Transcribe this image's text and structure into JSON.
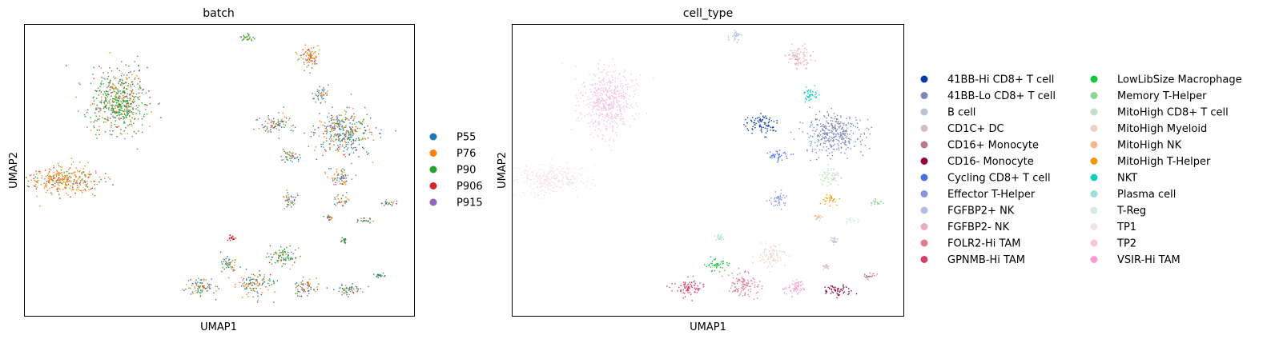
{
  "chart_data": [
    {
      "type": "scatter",
      "title": "batch",
      "xlabel": "UMAP1",
      "ylabel": "UMAP2",
      "grid": false,
      "ticks": false,
      "legend_placement": "right",
      "series": [
        {
          "name": "P55",
          "color": "#1f77b4"
        },
        {
          "name": "P76",
          "color": "#ff7f0e"
        },
        {
          "name": "P90",
          "color": "#2ca02c"
        },
        {
          "name": "P906",
          "color": "#d62728"
        },
        {
          "name": "P915",
          "color": "#9467bd"
        }
      ],
      "clusters": [
        {
          "cx": 0.1,
          "cy": 0.47,
          "w": 0.09,
          "h": 0.05,
          "mix": [
            0,
            0.7,
            0.15,
            0.1,
            0.05
          ]
        },
        {
          "cx": 0.24,
          "cy": 0.74,
          "w": 0.07,
          "h": 0.11,
          "mix": [
            0,
            0.15,
            0.65,
            0.12,
            0.08
          ]
        },
        {
          "cx": 0.57,
          "cy": 0.96,
          "w": 0.02,
          "h": 0.02,
          "mix": [
            0.1,
            0.1,
            0.7,
            0.05,
            0.05
          ]
        },
        {
          "cx": 0.73,
          "cy": 0.89,
          "w": 0.03,
          "h": 0.04,
          "mix": [
            0.15,
            0.7,
            0.05,
            0.05,
            0.05
          ]
        },
        {
          "cx": 0.76,
          "cy": 0.76,
          "w": 0.02,
          "h": 0.03,
          "mix": [
            0.4,
            0.3,
            0.1,
            0.05,
            0.15
          ]
        },
        {
          "cx": 0.64,
          "cy": 0.66,
          "w": 0.04,
          "h": 0.03,
          "mix": [
            0.3,
            0.3,
            0.2,
            0.05,
            0.15
          ]
        },
        {
          "cx": 0.82,
          "cy": 0.63,
          "w": 0.07,
          "h": 0.07,
          "mix": [
            0.3,
            0.25,
            0.25,
            0.1,
            0.1
          ]
        },
        {
          "cx": 0.68,
          "cy": 0.55,
          "w": 0.03,
          "h": 0.02,
          "mix": [
            0.3,
            0.3,
            0.2,
            0.1,
            0.1
          ]
        },
        {
          "cx": 0.81,
          "cy": 0.48,
          "w": 0.03,
          "h": 0.03,
          "mix": [
            0.3,
            0.4,
            0.1,
            0.1,
            0.1
          ]
        },
        {
          "cx": 0.68,
          "cy": 0.4,
          "w": 0.02,
          "h": 0.03,
          "mix": [
            0.25,
            0.35,
            0.25,
            0.05,
            0.1
          ]
        },
        {
          "cx": 0.81,
          "cy": 0.4,
          "w": 0.02,
          "h": 0.02,
          "mix": [
            0.3,
            0.3,
            0.2,
            0.1,
            0.1
          ]
        },
        {
          "cx": 0.93,
          "cy": 0.39,
          "w": 0.02,
          "h": 0.01,
          "mix": [
            0.3,
            0.2,
            0.2,
            0.1,
            0.2
          ]
        },
        {
          "cx": 0.87,
          "cy": 0.33,
          "w": 0.02,
          "h": 0.01,
          "mix": [
            0.3,
            0.3,
            0.2,
            0.1,
            0.1
          ]
        },
        {
          "cx": 0.78,
          "cy": 0.34,
          "w": 0.01,
          "h": 0.01,
          "mix": [
            0.2,
            0.4,
            0.2,
            0.1,
            0.1
          ]
        },
        {
          "cx": 0.53,
          "cy": 0.27,
          "w": 0.01,
          "h": 0.01,
          "mix": [
            0,
            0,
            0,
            1,
            0
          ]
        },
        {
          "cx": 0.66,
          "cy": 0.21,
          "w": 0.035,
          "h": 0.035,
          "mix": [
            0.15,
            0.15,
            0.6,
            0.05,
            0.05
          ]
        },
        {
          "cx": 0.52,
          "cy": 0.18,
          "w": 0.025,
          "h": 0.025,
          "mix": [
            0.3,
            0.2,
            0.35,
            0.05,
            0.1
          ]
        },
        {
          "cx": 0.82,
          "cy": 0.26,
          "w": 0.01,
          "h": 0.01,
          "mix": [
            0.1,
            0.1,
            0.6,
            0.1,
            0.1
          ]
        },
        {
          "cx": 0.45,
          "cy": 0.1,
          "w": 0.04,
          "h": 0.03,
          "mix": [
            0.3,
            0.35,
            0.2,
            0.05,
            0.1
          ]
        },
        {
          "cx": 0.59,
          "cy": 0.11,
          "w": 0.04,
          "h": 0.04,
          "mix": [
            0.3,
            0.3,
            0.25,
            0.05,
            0.1
          ]
        },
        {
          "cx": 0.72,
          "cy": 0.1,
          "w": 0.03,
          "h": 0.03,
          "mix": [
            0.3,
            0.3,
            0.2,
            0.1,
            0.1
          ]
        },
        {
          "cx": 0.83,
          "cy": 0.09,
          "w": 0.04,
          "h": 0.02,
          "mix": [
            0.3,
            0.3,
            0.2,
            0.1,
            0.1
          ]
        },
        {
          "cx": 0.91,
          "cy": 0.14,
          "w": 0.015,
          "h": 0.01,
          "mix": [
            0.2,
            0.2,
            0.4,
            0.1,
            0.1
          ]
        }
      ]
    },
    {
      "type": "scatter",
      "title": "cell_type",
      "xlabel": "UMAP1",
      "ylabel": "UMAP2",
      "grid": false,
      "ticks": false,
      "legend_placement": "right",
      "series": [
        {
          "name": "41BB-Hi CD8+ T cell",
          "color": "#023fa5"
        },
        {
          "name": "41BB-Lo CD8+ T cell",
          "color": "#7d87b9"
        },
        {
          "name": "B cell",
          "color": "#bec1d4"
        },
        {
          "name": "CD1C+ DC",
          "color": "#d6bcc0"
        },
        {
          "name": "CD16+ Monocyte",
          "color": "#bb7784"
        },
        {
          "name": "CD16- Monocyte",
          "color": "#8e063b"
        },
        {
          "name": "Cycling CD8+ T cell",
          "color": "#4a6fe3"
        },
        {
          "name": "Effector T-Helper",
          "color": "#8595e1"
        },
        {
          "name": "FGFBP2+ NK",
          "color": "#b5bbe3"
        },
        {
          "name": "FGFBP2- NK",
          "color": "#e6afb9"
        },
        {
          "name": "FOLR2-Hi TAM",
          "color": "#e07b91"
        },
        {
          "name": "GPNMB-Hi TAM",
          "color": "#d33f6a"
        },
        {
          "name": "LowLibSize Macrophage",
          "color": "#11c638"
        },
        {
          "name": "Memory T-Helper",
          "color": "#8dd593"
        },
        {
          "name": "MitoHigh CD8+ T cell",
          "color": "#c6dec7"
        },
        {
          "name": "MitoHigh Myeloid",
          "color": "#ead3c6"
        },
        {
          "name": "MitoHigh NK",
          "color": "#f0b98d"
        },
        {
          "name": "MitoHigh T-Helper",
          "color": "#ef9708"
        },
        {
          "name": "NKT",
          "color": "#0fcfc0"
        },
        {
          "name": "Plasma cell",
          "color": "#9cded6"
        },
        {
          "name": "T-Reg",
          "color": "#d5eae7"
        },
        {
          "name": "TP1",
          "color": "#f3e1eb"
        },
        {
          "name": "TP2",
          "color": "#f6c4e1"
        },
        {
          "name": "VSIR-Hi TAM",
          "color": "#f79cd4"
        }
      ],
      "clusters": [
        {
          "cx": 0.1,
          "cy": 0.47,
          "w": 0.09,
          "h": 0.05,
          "idx": 21
        },
        {
          "cx": 0.24,
          "cy": 0.74,
          "w": 0.07,
          "h": 0.11,
          "idx": 22
        },
        {
          "cx": 0.57,
          "cy": 0.96,
          "w": 0.02,
          "h": 0.02,
          "idx": 8
        },
        {
          "cx": 0.73,
          "cy": 0.89,
          "w": 0.03,
          "h": 0.04,
          "idx": 9
        },
        {
          "cx": 0.76,
          "cy": 0.76,
          "w": 0.02,
          "h": 0.03,
          "idx": 18
        },
        {
          "cx": 0.64,
          "cy": 0.66,
          "w": 0.04,
          "h": 0.03,
          "idx": 0
        },
        {
          "cx": 0.82,
          "cy": 0.63,
          "w": 0.07,
          "h": 0.07,
          "idx": 1
        },
        {
          "cx": 0.68,
          "cy": 0.55,
          "w": 0.03,
          "h": 0.02,
          "idx": 6
        },
        {
          "cx": 0.81,
          "cy": 0.48,
          "w": 0.03,
          "h": 0.03,
          "idx": 14
        },
        {
          "cx": 0.68,
          "cy": 0.4,
          "w": 0.02,
          "h": 0.03,
          "idx": 7
        },
        {
          "cx": 0.81,
          "cy": 0.4,
          "w": 0.02,
          "h": 0.02,
          "idx": 17
        },
        {
          "cx": 0.93,
          "cy": 0.39,
          "w": 0.02,
          "h": 0.01,
          "idx": 13
        },
        {
          "cx": 0.87,
          "cy": 0.33,
          "w": 0.02,
          "h": 0.01,
          "idx": 20
        },
        {
          "cx": 0.78,
          "cy": 0.34,
          "w": 0.01,
          "h": 0.01,
          "idx": 16
        },
        {
          "cx": 0.53,
          "cy": 0.27,
          "w": 0.01,
          "h": 0.01,
          "idx": 19
        },
        {
          "cx": 0.66,
          "cy": 0.21,
          "w": 0.035,
          "h": 0.035,
          "idx": 15
        },
        {
          "cx": 0.52,
          "cy": 0.18,
          "w": 0.025,
          "h": 0.025,
          "idx": 12
        },
        {
          "cx": 0.82,
          "cy": 0.26,
          "w": 0.01,
          "h": 0.01,
          "idx": 2
        },
        {
          "cx": 0.45,
          "cy": 0.1,
          "w": 0.04,
          "h": 0.03,
          "idx": 11
        },
        {
          "cx": 0.59,
          "cy": 0.11,
          "w": 0.04,
          "h": 0.04,
          "idx": 10
        },
        {
          "cx": 0.72,
          "cy": 0.1,
          "w": 0.03,
          "h": 0.03,
          "idx": 23
        },
        {
          "cx": 0.83,
          "cy": 0.09,
          "w": 0.04,
          "h": 0.02,
          "idx": 5
        },
        {
          "cx": 0.91,
          "cy": 0.14,
          "w": 0.015,
          "h": 0.01,
          "idx": 4
        },
        {
          "cx": 0.8,
          "cy": 0.17,
          "w": 0.01,
          "h": 0.01,
          "idx": 3
        }
      ]
    }
  ]
}
